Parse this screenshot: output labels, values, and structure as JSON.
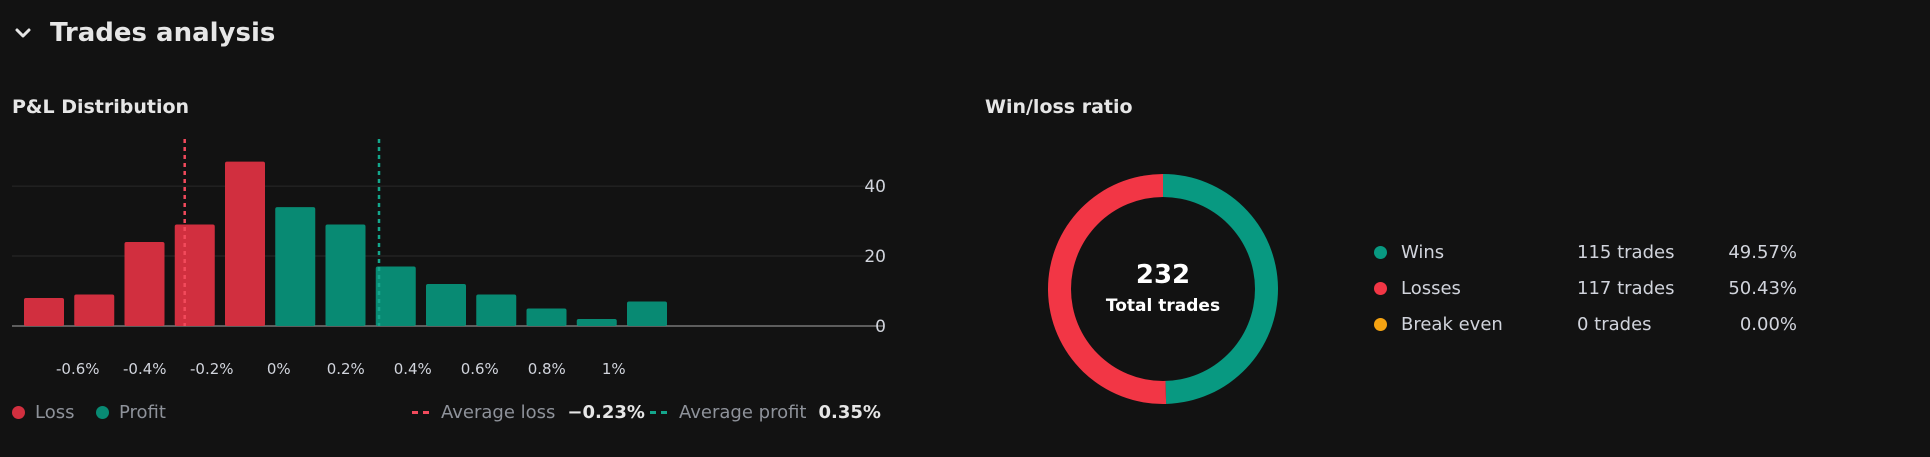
{
  "header": {
    "title": "Trades analysis",
    "toggle_icon": "chevron-down-icon"
  },
  "colors": {
    "loss": "#d12f3f",
    "profit": "#088a73",
    "break_even": "#f5a312",
    "avg_loss_line": "#f24a5c",
    "avg_profit_line": "#14a68c",
    "donut_loss": "#f23645",
    "donut_win": "#089981"
  },
  "pl_distribution": {
    "title": "P&L Distribution",
    "legend": {
      "loss": "Loss",
      "profit": "Profit",
      "average_loss_label": "Average loss",
      "average_loss_value": "−0.23%",
      "average_profit_label": "Average profit",
      "average_profit_value": "0.35%"
    }
  },
  "chart_data": [
    {
      "type": "bar",
      "title": "P&L Distribution",
      "x_tick_labels": [
        "-0.6%",
        "-0.4%",
        "-0.2%",
        "0%",
        "0.2%",
        "0.4%",
        "0.6%",
        "0.8%",
        "1%"
      ],
      "x_tick_values": [
        -0.6,
        -0.4,
        -0.2,
        0,
        0.2,
        0.4,
        0.6,
        0.8,
        1.0
      ],
      "xlim": [
        -0.7,
        1.15
      ],
      "y_ticks": [
        0,
        20,
        40
      ],
      "ylim": [
        0,
        52
      ],
      "grid": true,
      "series": [
        {
          "name": "Loss",
          "x": [
            -0.65,
            -0.5,
            -0.35,
            -0.2,
            -0.05
          ],
          "values": [
            8,
            9,
            24,
            29,
            47
          ]
        },
        {
          "name": "Profit",
          "x": [
            0.1,
            0.25,
            0.4,
            0.55,
            0.7,
            0.85,
            1.0,
            1.15
          ],
          "values": [
            34,
            29,
            17,
            12,
            9,
            5,
            2,
            7
          ]
        }
      ],
      "reference_lines": [
        {
          "name": "Average loss",
          "x": -0.23
        },
        {
          "name": "Average profit",
          "x": 0.35
        }
      ]
    },
    {
      "type": "pie",
      "title": "Win/loss ratio",
      "center_value": "232",
      "center_label": "Total trades",
      "slices": [
        {
          "label": "Wins",
          "value": 115
        },
        {
          "label": "Losses",
          "value": 117
        },
        {
          "label": "Break even",
          "value": 0
        }
      ]
    }
  ],
  "win_loss": {
    "title": "Win/loss ratio",
    "rows": [
      {
        "label": "Wins",
        "trades": "115 trades",
        "pct": "49.57%"
      },
      {
        "label": "Losses",
        "trades": "117 trades",
        "pct": "50.43%"
      },
      {
        "label": "Break even",
        "trades": "0 trades",
        "pct": "0.00%"
      }
    ]
  }
}
